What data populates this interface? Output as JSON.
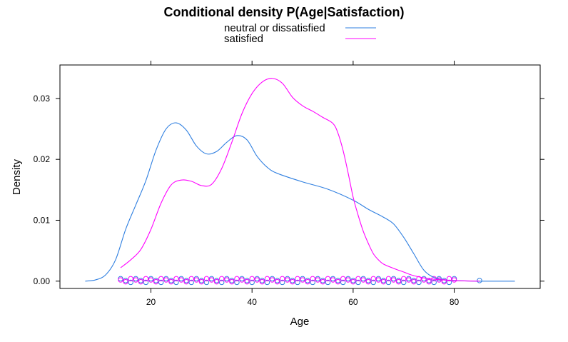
{
  "chart_data": {
    "type": "line",
    "title": "Conditional density P(Age|Satisfaction)",
    "xlabel": "Age",
    "ylabel": "Density",
    "xlim": [
      2,
      97
    ],
    "ylim": [
      -0.0012,
      0.0355
    ],
    "x_ticks": [
      20,
      40,
      60,
      80
    ],
    "y_ticks": [
      0.0,
      0.01,
      0.02,
      0.03
    ],
    "x_tick_labels": [
      "20",
      "40",
      "60",
      "80"
    ],
    "y_tick_labels": [
      "0.00",
      "0.01",
      "0.02",
      "0.03"
    ],
    "grid": false,
    "legend_position": "top",
    "series": [
      {
        "name": "neutral or dissatisfied",
        "color": "#2f7fe0",
        "x": [
          7,
          9,
          11,
          13,
          15,
          17,
          19,
          21,
          23,
          25,
          27,
          29,
          31,
          33,
          35,
          37,
          39,
          41,
          43,
          45,
          50,
          55,
          60,
          63,
          66,
          68,
          70,
          72,
          74,
          76,
          78,
          80,
          85,
          92
        ],
        "y": [
          0.0,
          0.0002,
          0.001,
          0.0035,
          0.0085,
          0.0125,
          0.0165,
          0.0215,
          0.025,
          0.026,
          0.0248,
          0.0222,
          0.0209,
          0.0213,
          0.0228,
          0.0239,
          0.0232,
          0.0205,
          0.0187,
          0.0177,
          0.0163,
          0.0151,
          0.0133,
          0.0118,
          0.0105,
          0.0094,
          0.0072,
          0.0045,
          0.0018,
          0.0006,
          0.0002,
          0.0001,
          0.0,
          0.0
        ],
        "rug": [
          14,
          15,
          16,
          17,
          18,
          19,
          20,
          21,
          22,
          23,
          24,
          25,
          26,
          27,
          28,
          29,
          30,
          31,
          32,
          33,
          34,
          35,
          36,
          37,
          38,
          39,
          40,
          41,
          42,
          43,
          44,
          45,
          46,
          47,
          48,
          49,
          50,
          51,
          52,
          53,
          54,
          55,
          56,
          57,
          58,
          59,
          60,
          61,
          62,
          63,
          64,
          65,
          66,
          67,
          68,
          69,
          70,
          71,
          72,
          73,
          74,
          75,
          76,
          77,
          78,
          79,
          80,
          85
        ]
      },
      {
        "name": "satisfied",
        "color": "#ff00ff",
        "x": [
          14,
          16,
          18,
          20,
          22,
          24,
          26,
          28,
          30,
          32,
          34,
          36,
          38,
          40,
          42,
          44,
          46,
          48,
          50,
          52,
          54,
          56,
          57,
          58,
          59,
          60,
          61,
          62,
          63,
          64,
          65,
          66,
          68,
          70,
          72,
          75,
          80,
          85
        ],
        "y": [
          0.0022,
          0.0035,
          0.0052,
          0.0085,
          0.0128,
          0.0158,
          0.0166,
          0.0164,
          0.0157,
          0.0159,
          0.0185,
          0.0228,
          0.0275,
          0.0308,
          0.0327,
          0.0333,
          0.0325,
          0.0302,
          0.0288,
          0.0279,
          0.0269,
          0.0259,
          0.0243,
          0.0215,
          0.0178,
          0.0138,
          0.0108,
          0.0082,
          0.0062,
          0.0045,
          0.0035,
          0.0028,
          0.0021,
          0.0015,
          0.0009,
          0.0004,
          0.0001,
          0.0
        ],
        "rug": [
          14,
          15,
          16,
          17,
          18,
          19,
          20,
          21,
          22,
          23,
          24,
          25,
          26,
          27,
          28,
          29,
          30,
          31,
          32,
          33,
          34,
          35,
          36,
          37,
          38,
          39,
          40,
          41,
          42,
          43,
          44,
          45,
          46,
          47,
          48,
          49,
          50,
          51,
          52,
          53,
          54,
          55,
          56,
          57,
          58,
          59,
          60,
          61,
          62,
          63,
          64,
          65,
          66,
          67,
          68,
          69,
          70,
          71,
          72,
          73,
          74,
          75,
          76,
          77,
          78,
          79,
          80
        ]
      }
    ]
  }
}
